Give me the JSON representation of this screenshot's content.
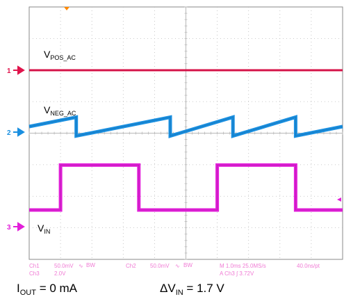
{
  "colors": {
    "ch1": "#e0144c",
    "ch2": "#1a8fe0",
    "ch3": "#e21fd9",
    "trigger": "#ff8800",
    "grid": "#b8b8b8",
    "status": "#f07ad4",
    "text": "#000000"
  },
  "chart_data": {
    "type": "line",
    "title": "",
    "grid": true,
    "time_per_division": "1.0ms",
    "divisions_x": 10,
    "divisions_y": 8,
    "series": [
      {
        "name": "V_POS_AC",
        "channel_number": "1",
        "points": [
          [
            0,
            0
          ],
          [
            10,
            0
          ]
        ]
      },
      {
        "name": "V_NEG_AC",
        "channel_number": "2",
        "points": [
          [
            0,
            0
          ],
          [
            1.5,
            0.45
          ],
          [
            1.5,
            -0.45
          ],
          [
            4.5,
            0.45
          ],
          [
            4.5,
            -0.45
          ],
          [
            6.5,
            0.45
          ],
          [
            6.5,
            -0.45
          ],
          [
            8.5,
            0.45
          ],
          [
            8.5,
            -0.45
          ],
          [
            10,
            0
          ]
        ]
      },
      {
        "name": "V_IN",
        "channel_number": "3",
        "points": [
          [
            0,
            0
          ],
          [
            1.0,
            0
          ],
          [
            1.0,
            1.7
          ],
          [
            3.5,
            1.7
          ],
          [
            3.5,
            0
          ],
          [
            6.0,
            0
          ],
          [
            6.0,
            1.7
          ],
          [
            8.5,
            1.7
          ],
          [
            8.5,
            0
          ],
          [
            10,
            0
          ]
        ]
      }
    ],
    "annotations": [
      {
        "main": "V",
        "sub": "POS_AC"
      },
      {
        "main": "V",
        "sub": "NEG_AC"
      },
      {
        "main": "V",
        "sub": "IN"
      }
    ]
  },
  "status_bar": {
    "ch1_label": "Ch1",
    "ch1_scale": "50.0mV",
    "ch1_coupling": "∿",
    "ch1_bw": "BW",
    "ch2_label": "Ch2",
    "ch2_scale": "50.0mV",
    "ch2_coupling": "∿",
    "ch2_bw": "BW",
    "timebase": "M 1.0ms 25.0MS/s",
    "record": "40.0ns/pt",
    "ch3_label": "Ch3",
    "ch3_scale": "2.0V",
    "trigger": "A  Ch3  ∫  3.72V"
  },
  "captions": {
    "iout_main": "I",
    "iout_sub": "OUT",
    "iout_value": " = 0 mA",
    "dvin_main": "ΔV",
    "dvin_sub": "IN",
    "dvin_value": " = 1.7 V"
  }
}
